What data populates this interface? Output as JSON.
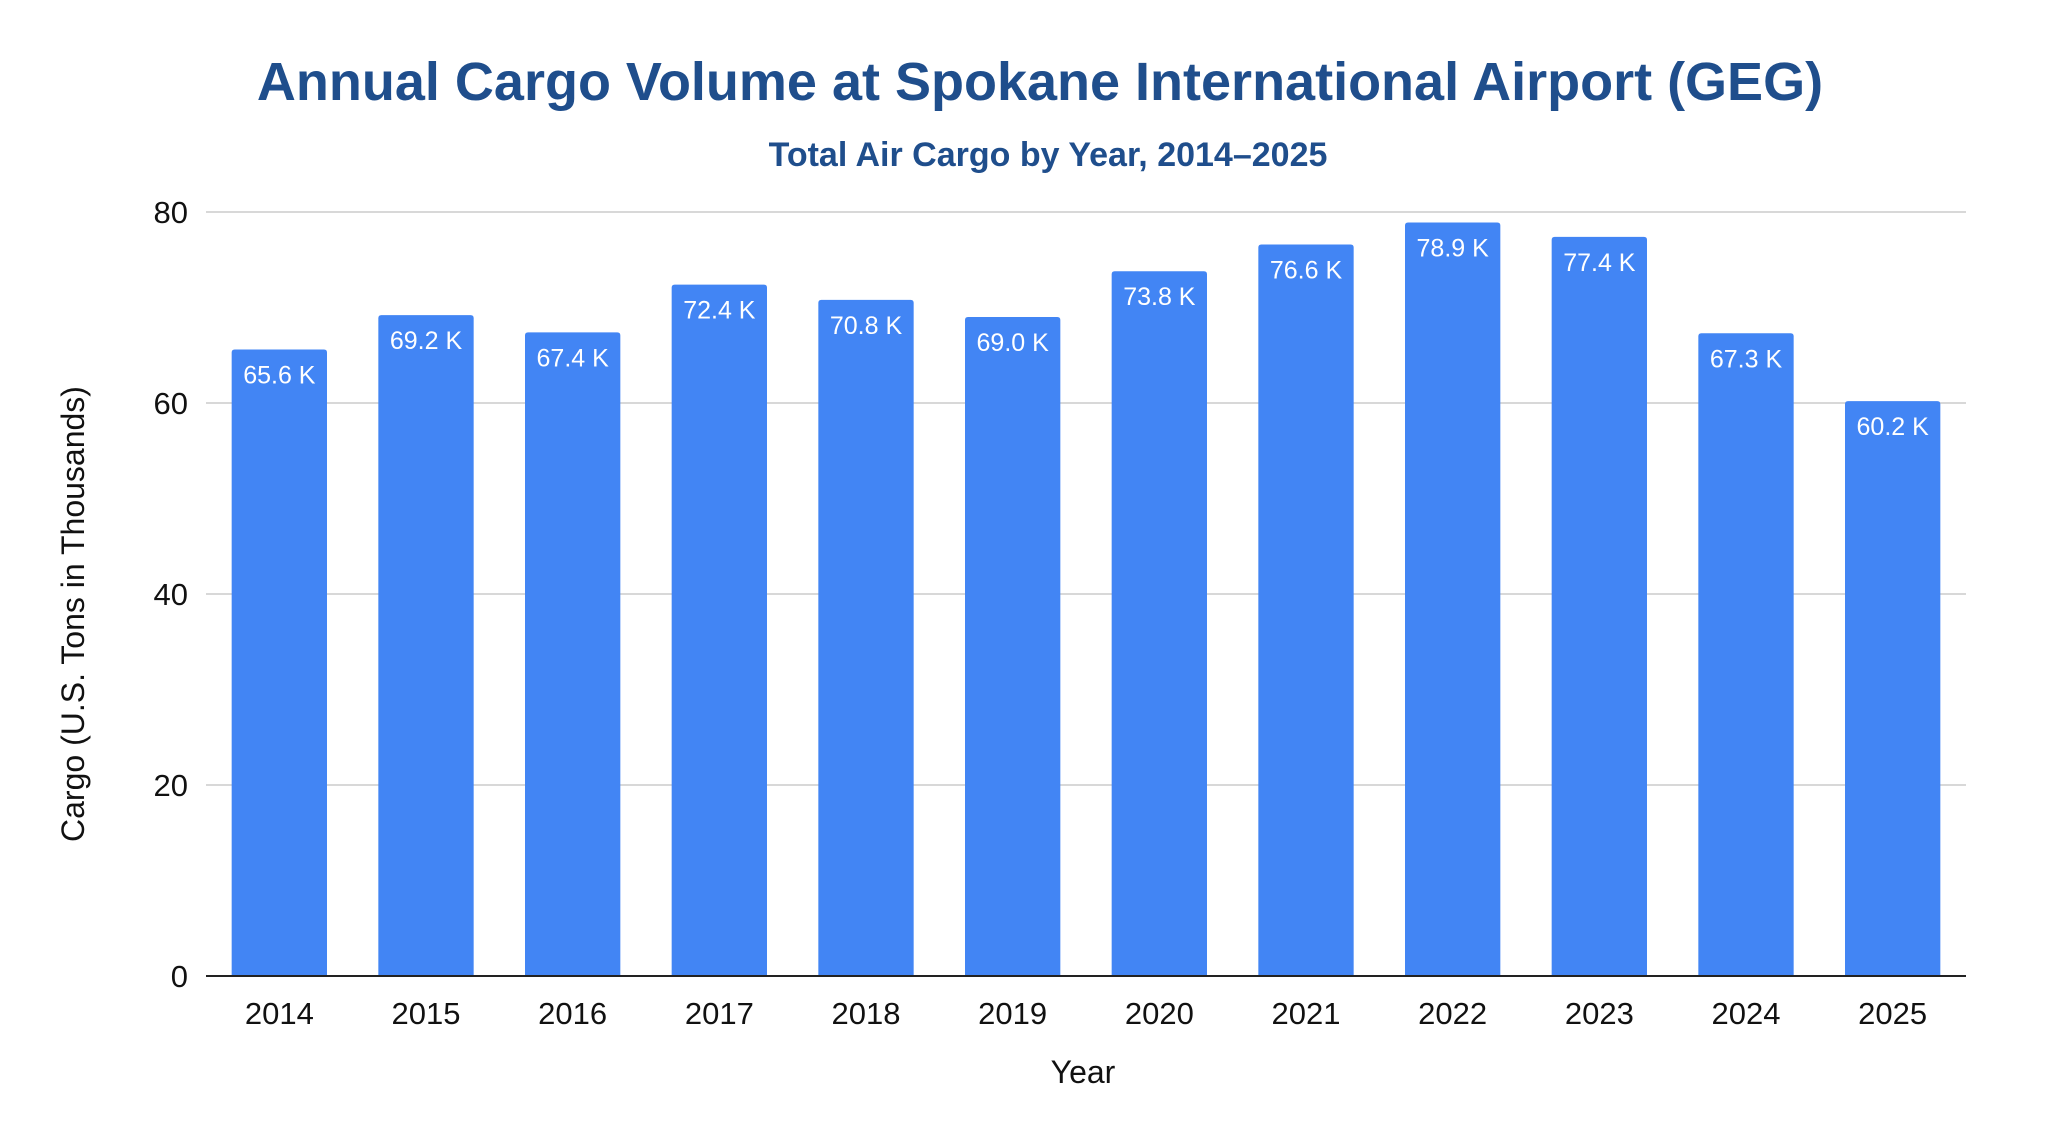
{
  "chart_data": {
    "type": "bar",
    "title": "Annual Cargo Volume at Spokane International Airport (GEG)",
    "subtitle": "Total Air Cargo by Year, 2014–2025",
    "xlabel": "Year",
    "ylabel": "Cargo (U.S. Tons in Thousands)",
    "categories": [
      "2014",
      "2015",
      "2016",
      "2017",
      "2018",
      "2019",
      "2020",
      "2021",
      "2022",
      "2023",
      "2024",
      "2025"
    ],
    "values": [
      65.6,
      69.2,
      67.4,
      72.4,
      70.8,
      69.0,
      73.8,
      76.6,
      78.9,
      77.4,
      67.3,
      60.2
    ],
    "data_labels": [
      "65.6 K",
      "69.2 K",
      "67.4 K",
      "72.4 K",
      "70.8 K",
      "69.0 K",
      "73.8 K",
      "76.6 K",
      "78.9 K",
      "77.4 K",
      "67.3 K",
      "60.2 K"
    ],
    "ylim": [
      0,
      80
    ],
    "yticks": [
      "0",
      "20",
      "40",
      "60",
      "80"
    ],
    "grid": true,
    "legend": "none",
    "colors": {
      "bar": "#4285f4",
      "title": "#1f4e8c",
      "data_label": "#ffffff",
      "gridline": "#cccccc",
      "text": "#111111"
    }
  }
}
